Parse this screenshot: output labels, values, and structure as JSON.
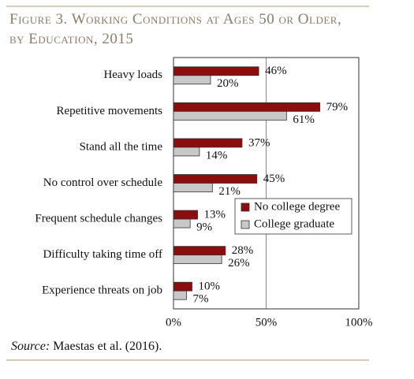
{
  "chart_data": {
    "type": "hbar",
    "title": "Figure 3. Working Conditions at Ages 50 or Older, by Education, 2015",
    "categories": [
      "Heavy loads",
      "Repetitive movements",
      "Stand all the time",
      "No control over schedule",
      "Frequent schedule changes",
      "Difficulty taking time off",
      "Experience threats on job"
    ],
    "series": [
      {
        "name": "No college degree",
        "color": "#8b0d0d",
        "values": [
          46,
          79,
          37,
          45,
          13,
          28,
          10
        ],
        "value_labels": [
          "46%",
          "79%",
          "37%",
          "45%",
          "13%",
          "28%",
          "10%"
        ]
      },
      {
        "name": "College graduate",
        "color": "#c8c8c8",
        "values": [
          20,
          61,
          14,
          21,
          9,
          26,
          7
        ],
        "value_labels": [
          "20%",
          "61%",
          "14%",
          "21%",
          "9%",
          "26%",
          "7%"
        ]
      }
    ],
    "xlim": [
      0,
      100
    ],
    "xticks": [
      {
        "value": 0,
        "label": "0%"
      },
      {
        "value": 50,
        "label": "50%"
      },
      {
        "value": 100,
        "label": "100%"
      }
    ],
    "grid": true,
    "source_label": "Source:",
    "source_text": "Maestas et al. (2016)."
  }
}
